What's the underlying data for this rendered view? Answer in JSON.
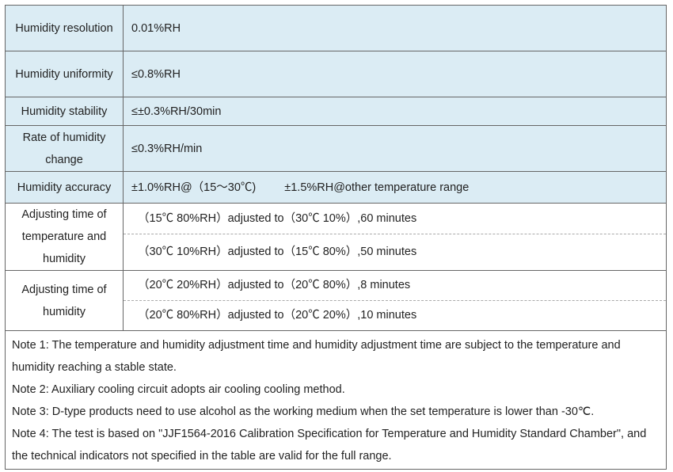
{
  "table": {
    "rows": [
      {
        "label": "Humidity resolution",
        "values": [
          "0.01%RH"
        ]
      },
      {
        "label": "Humidity uniformity",
        "values": [
          "≤0.8%RH"
        ]
      },
      {
        "label": "Humidity stability",
        "values": [
          "≤±0.3%RH/30min"
        ]
      },
      {
        "label": "Rate of humidity change",
        "values": [
          "≤0.3%RH/min"
        ]
      },
      {
        "label": "Humidity accuracy",
        "values": [
          "±1.0%RH@（15～30℃)",
          "±1.5%RH@other temperature range"
        ]
      },
      {
        "label": "Adjusting time of temperature and humidity",
        "values": [
          "（15℃ 80%RH）adjusted to（30℃ 10%）,60 minutes",
          "（30℃ 10%RH）adjusted to（15℃ 80%）,50 minutes"
        ]
      },
      {
        "label": "Adjusting time of humidity",
        "values": [
          "（20℃ 20%RH）adjusted to（20℃ 80%）,8 minutes",
          "（20℃ 80%RH）adjusted to（20℃ 20%）,10 minutes"
        ]
      }
    ],
    "notes": [
      "Note 1: The temperature and humidity adjustment time and humidity adjustment time are subject to the temperature and humidity reaching a stable state.",
      "Note 2:  Auxiliary cooling circuit adopts air cooling cooling method.",
      "Note 3:  D-type products need to use alcohol as the working medium when the set temperature is lower than -30℃.",
      "Note 4: The test is based on \"JJF1564-2016 Calibration Specification for Temperature and Humidity Standard Chamber\", and the technical indicators not specified in the table are valid for the full range."
    ]
  }
}
